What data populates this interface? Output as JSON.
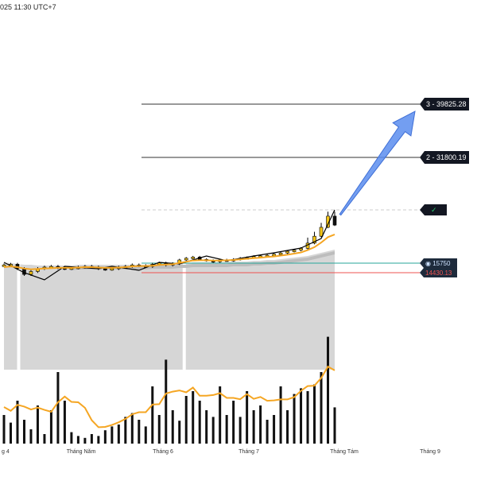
{
  "header": {
    "timestamp": "025 11:30 UTC+7"
  },
  "levels": [
    {
      "label": "3 - 39825.28",
      "value": 39825.28,
      "bg": "#131722"
    },
    {
      "label": "2 - 31800.19",
      "value": 31800.19,
      "bg": "#131722"
    }
  ],
  "check_badge": {
    "glyph": "✓",
    "value": 26400,
    "color": "#2ecc71",
    "bg": "#131722"
  },
  "price_markers": [
    {
      "label": "◉ 15750",
      "value": 15750,
      "bg": "#1e2b3c",
      "fg": "#cfe3ff",
      "line_color": "#26a69a"
    },
    {
      "label": "14430.13",
      "value": 14430,
      "bg": "#1e2b3c",
      "fg": "#ef5350",
      "line_color": "#ef5350"
    }
  ],
  "colors": {
    "grid_line": "#333333",
    "ma_line": "#f5a623",
    "cloud": "#d6d6d6",
    "candle_up": "#f5c518",
    "candle_down": "#111111",
    "volume": "#111111",
    "arrow": "#5b8def"
  },
  "chart_data": {
    "type": "candlestick",
    "x_ticks": [
      "g 4",
      "Tháng Năm",
      "Tháng 6",
      "Tháng 7",
      "Tháng Tám",
      "Tháng 9"
    ],
    "price_range": [
      10000,
      42000
    ],
    "close": [
      15500,
      15600,
      15000,
      14200,
      14600,
      15000,
      15200,
      15300,
      15100,
      15000,
      15100,
      15200,
      15300,
      15200,
      15000,
      14900,
      15000,
      15200,
      15300,
      15500,
      15400,
      15300,
      15600,
      15800,
      15500,
      15700,
      16300,
      16600,
      16800,
      16400,
      16200,
      16000,
      16300,
      16200,
      16400,
      16600,
      16700,
      16900,
      17000,
      17100,
      17300,
      17500,
      17800,
      18000,
      18300,
      19200,
      20500,
      22500,
      25000,
      23000
    ],
    "ma": [
      15200,
      15300,
      15200,
      15000,
      14900,
      14950,
      15000,
      15050,
      15100,
      15100,
      15100,
      15150,
      15200,
      15200,
      15150,
      15100,
      15100,
      15150,
      15200,
      15300,
      15350,
      15350,
      15400,
      15500,
      15550,
      15600,
      15800,
      16000,
      16200,
      16250,
      16250,
      16200,
      16200,
      16250,
      16300,
      16400,
      16500,
      16600,
      16700,
      16800,
      16900,
      17050,
      17200,
      17400,
      17600,
      18000,
      18500,
      19300,
      20300,
      20900
    ],
    "volume": [
      30,
      22,
      45,
      25,
      15,
      40,
      10,
      35,
      75,
      45,
      12,
      8,
      6,
      10,
      8,
      14,
      18,
      20,
      28,
      32,
      25,
      18,
      60,
      30,
      88,
      35,
      24,
      50,
      55,
      45,
      35,
      28,
      60,
      30,
      45,
      28,
      55,
      35,
      40,
      25,
      30,
      60,
      35,
      52,
      58,
      55,
      62,
      75,
      112,
      38
    ],
    "cloud_gaps": [
      1,
      26
    ],
    "projection_arrow": {
      "from_value": 23000,
      "to_value": 39825.28
    }
  }
}
